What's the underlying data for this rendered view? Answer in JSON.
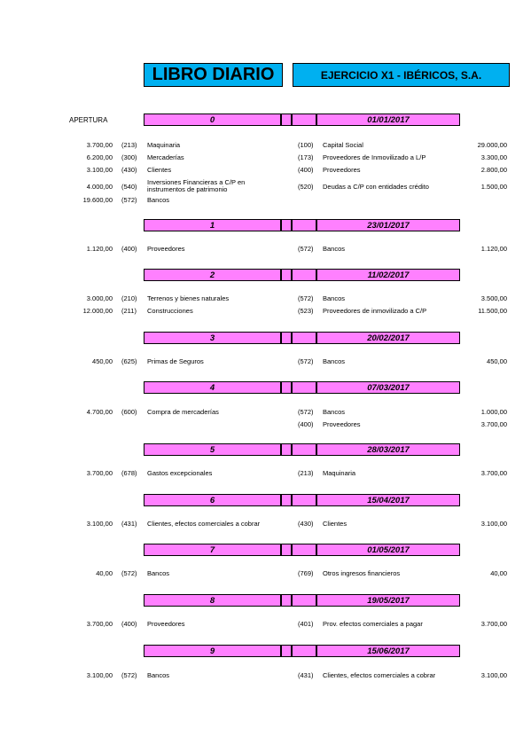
{
  "header": {
    "title": "LIBRO DIARIO",
    "subtitle": "EJERCICIO X1 - IBÉRICOS, S.A.",
    "apertura_label": "APERTURA"
  },
  "colors": {
    "title_bg": "#00b0f0",
    "entry_bar_bg": "#ff80ff"
  },
  "entries": [
    {
      "number": "0",
      "date": "01/01/2017",
      "lines": [
        {
          "debit_amount": "3.700,00",
          "debit_code": "(213)",
          "debit_account": "Maquinaria",
          "credit_code": "(100)",
          "credit_account": "Capital Social",
          "credit_amount": "29.000,00"
        },
        {
          "debit_amount": "6.200,00",
          "debit_code": "(300)",
          "debit_account": "Mercaderías",
          "credit_code": "(173)",
          "credit_account": "Proveedores de Inmovilizado a L/P",
          "credit_amount": "3.300,00"
        },
        {
          "debit_amount": "3.100,00",
          "debit_code": "(430)",
          "debit_account": "Clientes",
          "credit_code": "(400)",
          "credit_account": "Proveedores",
          "credit_amount": "2.800,00"
        },
        {
          "debit_amount": "4.000,00",
          "debit_code": "(540)",
          "debit_account": "Inversiones Financieras a C/P en instrumentos de patrimonio",
          "credit_code": "(520)",
          "credit_account": "Deudas a C/P con entidades crédito",
          "credit_amount": "1.500,00"
        },
        {
          "debit_amount": "19.600,00",
          "debit_code": "(572)",
          "debit_account": "Bancos",
          "credit_code": "",
          "credit_account": "",
          "credit_amount": ""
        }
      ]
    },
    {
      "number": "1",
      "date": "23/01/2017",
      "lines": [
        {
          "debit_amount": "1.120,00",
          "debit_code": "(400)",
          "debit_account": "Proveedores",
          "credit_code": "(572)",
          "credit_account": "Bancos",
          "credit_amount": "1.120,00"
        }
      ]
    },
    {
      "number": "2",
      "date": "11/02/2017",
      "lines": [
        {
          "debit_amount": "3.000,00",
          "debit_code": "(210)",
          "debit_account": "Terrenos y bienes naturales",
          "credit_code": "(572)",
          "credit_account": "Bancos",
          "credit_amount": "3.500,00"
        },
        {
          "debit_amount": "12.000,00",
          "debit_code": "(211)",
          "debit_account": "Construcciones",
          "credit_code": "(523)",
          "credit_account": "Proveedores de inmovilizado a C/P",
          "credit_amount": "11.500,00"
        }
      ]
    },
    {
      "number": "3",
      "date": "20/02/2017",
      "lines": [
        {
          "debit_amount": "450,00",
          "debit_code": "(625)",
          "debit_account": "Primas de Seguros",
          "credit_code": "(572)",
          "credit_account": "Bancos",
          "credit_amount": "450,00"
        }
      ]
    },
    {
      "number": "4",
      "date": "07/03/2017",
      "lines": [
        {
          "debit_amount": "4.700,00",
          "debit_code": "(600)",
          "debit_account": "Compra de mercaderías",
          "credit_code": "(572)",
          "credit_account": "Bancos",
          "credit_amount": "1.000,00"
        },
        {
          "debit_amount": "",
          "debit_code": "",
          "debit_account": "",
          "credit_code": "(400)",
          "credit_account": "Proveedores",
          "credit_amount": "3.700,00"
        }
      ]
    },
    {
      "number": "5",
      "date": "28/03/2017",
      "lines": [
        {
          "debit_amount": "3.700,00",
          "debit_code": "(678)",
          "debit_account": "Gastos excepcionales",
          "credit_code": "(213)",
          "credit_account": "Maquinaria",
          "credit_amount": "3.700,00"
        }
      ]
    },
    {
      "number": "6",
      "date": "15/04/2017",
      "lines": [
        {
          "debit_amount": "3.100,00",
          "debit_code": "(431)",
          "debit_account": "Clientes, efectos comerciales a cobrar",
          "credit_code": "(430)",
          "credit_account": "Clientes",
          "credit_amount": "3.100,00"
        }
      ]
    },
    {
      "number": "7",
      "date": "01/05/2017",
      "lines": [
        {
          "debit_amount": "40,00",
          "debit_code": "(572)",
          "debit_account": "Bancos",
          "credit_code": "(769)",
          "credit_account": "Otros ingresos financieros",
          "credit_amount": "40,00"
        }
      ]
    },
    {
      "number": "8",
      "date": "19/05/2017",
      "lines": [
        {
          "debit_amount": "3.700,00",
          "debit_code": "(400)",
          "debit_account": "Proveedores",
          "credit_code": "(401)",
          "credit_account": "Prov. efectos comerciales a pagar",
          "credit_amount": "3.700,00"
        }
      ]
    },
    {
      "number": "9",
      "date": "15/06/2017",
      "lines": [
        {
          "debit_amount": "3.100,00",
          "debit_code": "(572)",
          "debit_account": "Bancos",
          "credit_code": "(431)",
          "credit_account": "Clientes, efectos comerciales a cobrar",
          "credit_amount": "3.100,00"
        }
      ]
    }
  ]
}
